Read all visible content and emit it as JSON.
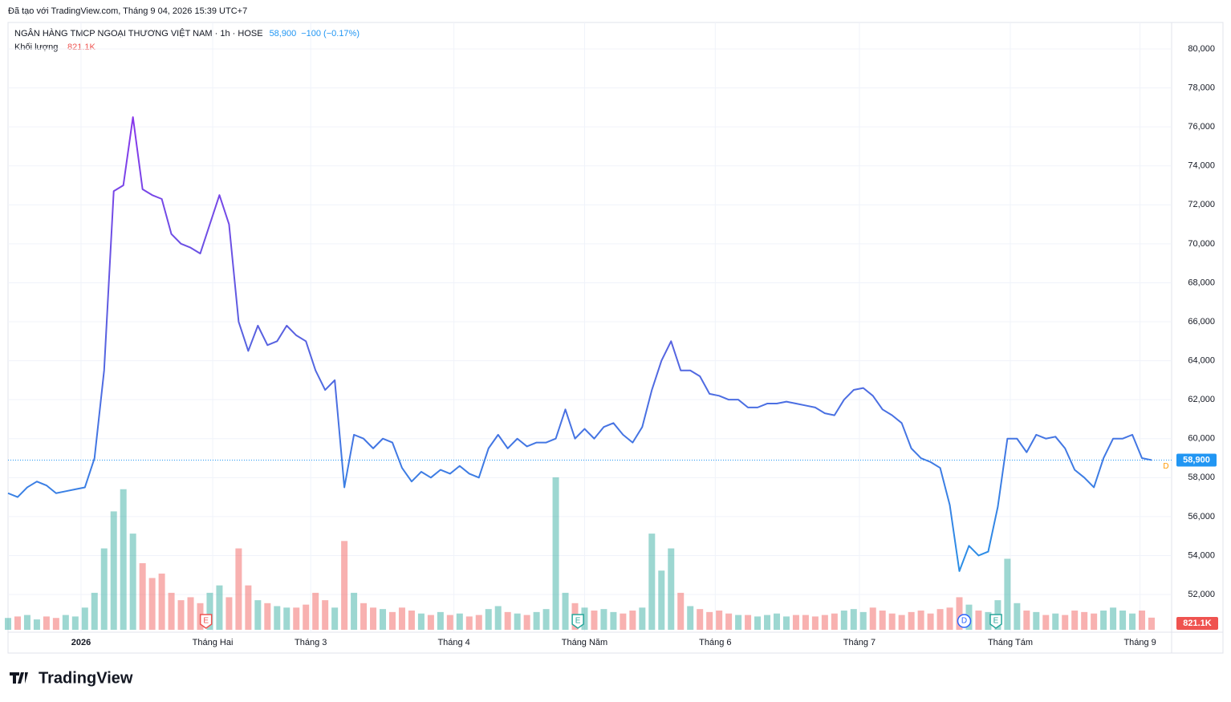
{
  "header": {
    "created": "Đã tạo với TradingView.com, Tháng 9 04, 2026 15:39 UTC+7",
    "logo": "TradingView"
  },
  "chart_data": {
    "type": "line",
    "title": "NGÂN HÀNG TMCP NGOẠI THƯƠNG VIỆT NAM · 1h · HOSE",
    "change_label": "−100 (−0.17%)",
    "last": {
      "value": 58900,
      "label": "58,900"
    },
    "right_marker": "D",
    "series": [
      {
        "name": "NGÂN HÀNG TMCP NGOẠI THƯƠNG VIỆT NAM",
        "colors": [
          "#9c27f0",
          "#5a60e0",
          "#1e9be8"
        ],
        "values": [
          57200,
          57000,
          57500,
          57800,
          57600,
          57200,
          57300,
          57400,
          57500,
          59000,
          63500,
          72700,
          73000,
          76500,
          72800,
          72500,
          72300,
          70500,
          70000,
          69800,
          69500,
          71000,
          72500,
          71000,
          66000,
          64500,
          65800,
          64800,
          65000,
          65800,
          65300,
          65000,
          63500,
          62500,
          63000,
          57500,
          60200,
          60000,
          59500,
          60000,
          59800,
          58500,
          57800,
          58300,
          58000,
          58400,
          58200,
          58600,
          58200,
          58000,
          59500,
          60200,
          59500,
          60000,
          59600,
          59800,
          59800,
          60000,
          61500,
          60000,
          60500,
          60000,
          60600,
          60800,
          60200,
          59800,
          60600,
          62500,
          64000,
          65000,
          63500,
          63500,
          63200,
          62300,
          62200,
          62000,
          62000,
          61600,
          61600,
          61800,
          61800,
          61900,
          61800,
          61700,
          61600,
          61300,
          61200,
          62000,
          62500,
          62600,
          62200,
          61500,
          61200,
          60800,
          59500,
          59000,
          58800,
          58500,
          56600,
          53200,
          54500,
          54000,
          54200,
          56500,
          60000,
          60000,
          59300,
          60200,
          60000,
          60100,
          59500,
          58400,
          58000,
          57500,
          59000,
          60000,
          60000,
          60200,
          59000,
          58900
        ]
      }
    ],
    "volume": {
      "name": "Khối lượng",
      "last_label": "821.1K",
      "up_color": "#26a69a",
      "down_color": "#ef5350",
      "values": [
        800000,
        900000,
        1000000,
        700000,
        900000,
        800000,
        1000000,
        900000,
        1500000,
        2500000,
        5500000,
        8000000,
        9500000,
        6500000,
        4500000,
        3500000,
        3800000,
        2500000,
        2000000,
        2200000,
        1800000,
        2500000,
        3000000,
        2200000,
        5500000,
        3000000,
        2000000,
        1800000,
        1600000,
        1500000,
        1500000,
        1700000,
        2500000,
        2000000,
        1500000,
        6000000,
        2500000,
        1800000,
        1500000,
        1400000,
        1200000,
        1500000,
        1300000,
        1100000,
        1000000,
        1200000,
        1000000,
        1100000,
        900000,
        1000000,
        1400000,
        1600000,
        1200000,
        1100000,
        1000000,
        1200000,
        1400000,
        10300000,
        2500000,
        1800000,
        1500000,
        1300000,
        1400000,
        1200000,
        1100000,
        1300000,
        1500000,
        6500000,
        4000000,
        5500000,
        2500000,
        1600000,
        1400000,
        1200000,
        1300000,
        1100000,
        1000000,
        1000000,
        900000,
        1000000,
        1100000,
        900000,
        1000000,
        1000000,
        900000,
        1000000,
        1100000,
        1300000,
        1400000,
        1200000,
        1500000,
        1300000,
        1100000,
        1000000,
        1200000,
        1300000,
        1100000,
        1400000,
        1500000,
        2200000,
        1700000,
        1300000,
        1200000,
        2000000,
        4800000,
        1800000,
        1300000,
        1200000,
        1000000,
        1100000,
        1000000,
        1300000,
        1200000,
        1100000,
        1300000,
        1500000,
        1300000,
        1100000,
        1300000,
        821100
      ]
    },
    "events": [
      {
        "label": "E",
        "x": 20.6,
        "color": "#ef5350"
      },
      {
        "label": "E",
        "x": 59.3,
        "color": "#26a69a"
      },
      {
        "label": "D",
        "x": 99.5,
        "color": "#2962ff"
      },
      {
        "label": "E",
        "x": 102.8,
        "color": "#26a69a"
      }
    ],
    "ylim": [
      50190,
      81070
    ],
    "yticks": [
      {
        "value": 52000,
        "label": "52,000"
      },
      {
        "value": 54000,
        "label": "54,000"
      },
      {
        "value": 56000,
        "label": "56,000"
      },
      {
        "value": 58000,
        "label": "58,000"
      },
      {
        "value": 60000,
        "label": "60,000"
      },
      {
        "value": 62000,
        "label": "62,000"
      },
      {
        "value": 64000,
        "label": "64,000"
      },
      {
        "value": 66000,
        "label": "66,000"
      },
      {
        "value": 68000,
        "label": "68,000"
      },
      {
        "value": 70000,
        "label": "70,000"
      },
      {
        "value": 72000,
        "label": "72,000"
      },
      {
        "value": 74000,
        "label": "74,000"
      },
      {
        "value": 76000,
        "label": "76,000"
      },
      {
        "value": 78000,
        "label": "78,000"
      },
      {
        "value": 80000,
        "label": "80,000"
      }
    ],
    "xticks": [
      {
        "value": 7.6,
        "label": "2026"
      },
      {
        "value": 21.3,
        "label": "Tháng Hai"
      },
      {
        "value": 31.5,
        "label": "Tháng 3"
      },
      {
        "value": 46.4,
        "label": "Tháng 4"
      },
      {
        "value": 60,
        "label": "Tháng Năm"
      },
      {
        "value": 73.6,
        "label": "Tháng 6"
      },
      {
        "value": 88.6,
        "label": "Tháng 7"
      },
      {
        "value": 104.3,
        "label": "Tháng Tám"
      },
      {
        "value": 117.8,
        "label": "Tháng 9"
      }
    ],
    "grid": true
  }
}
